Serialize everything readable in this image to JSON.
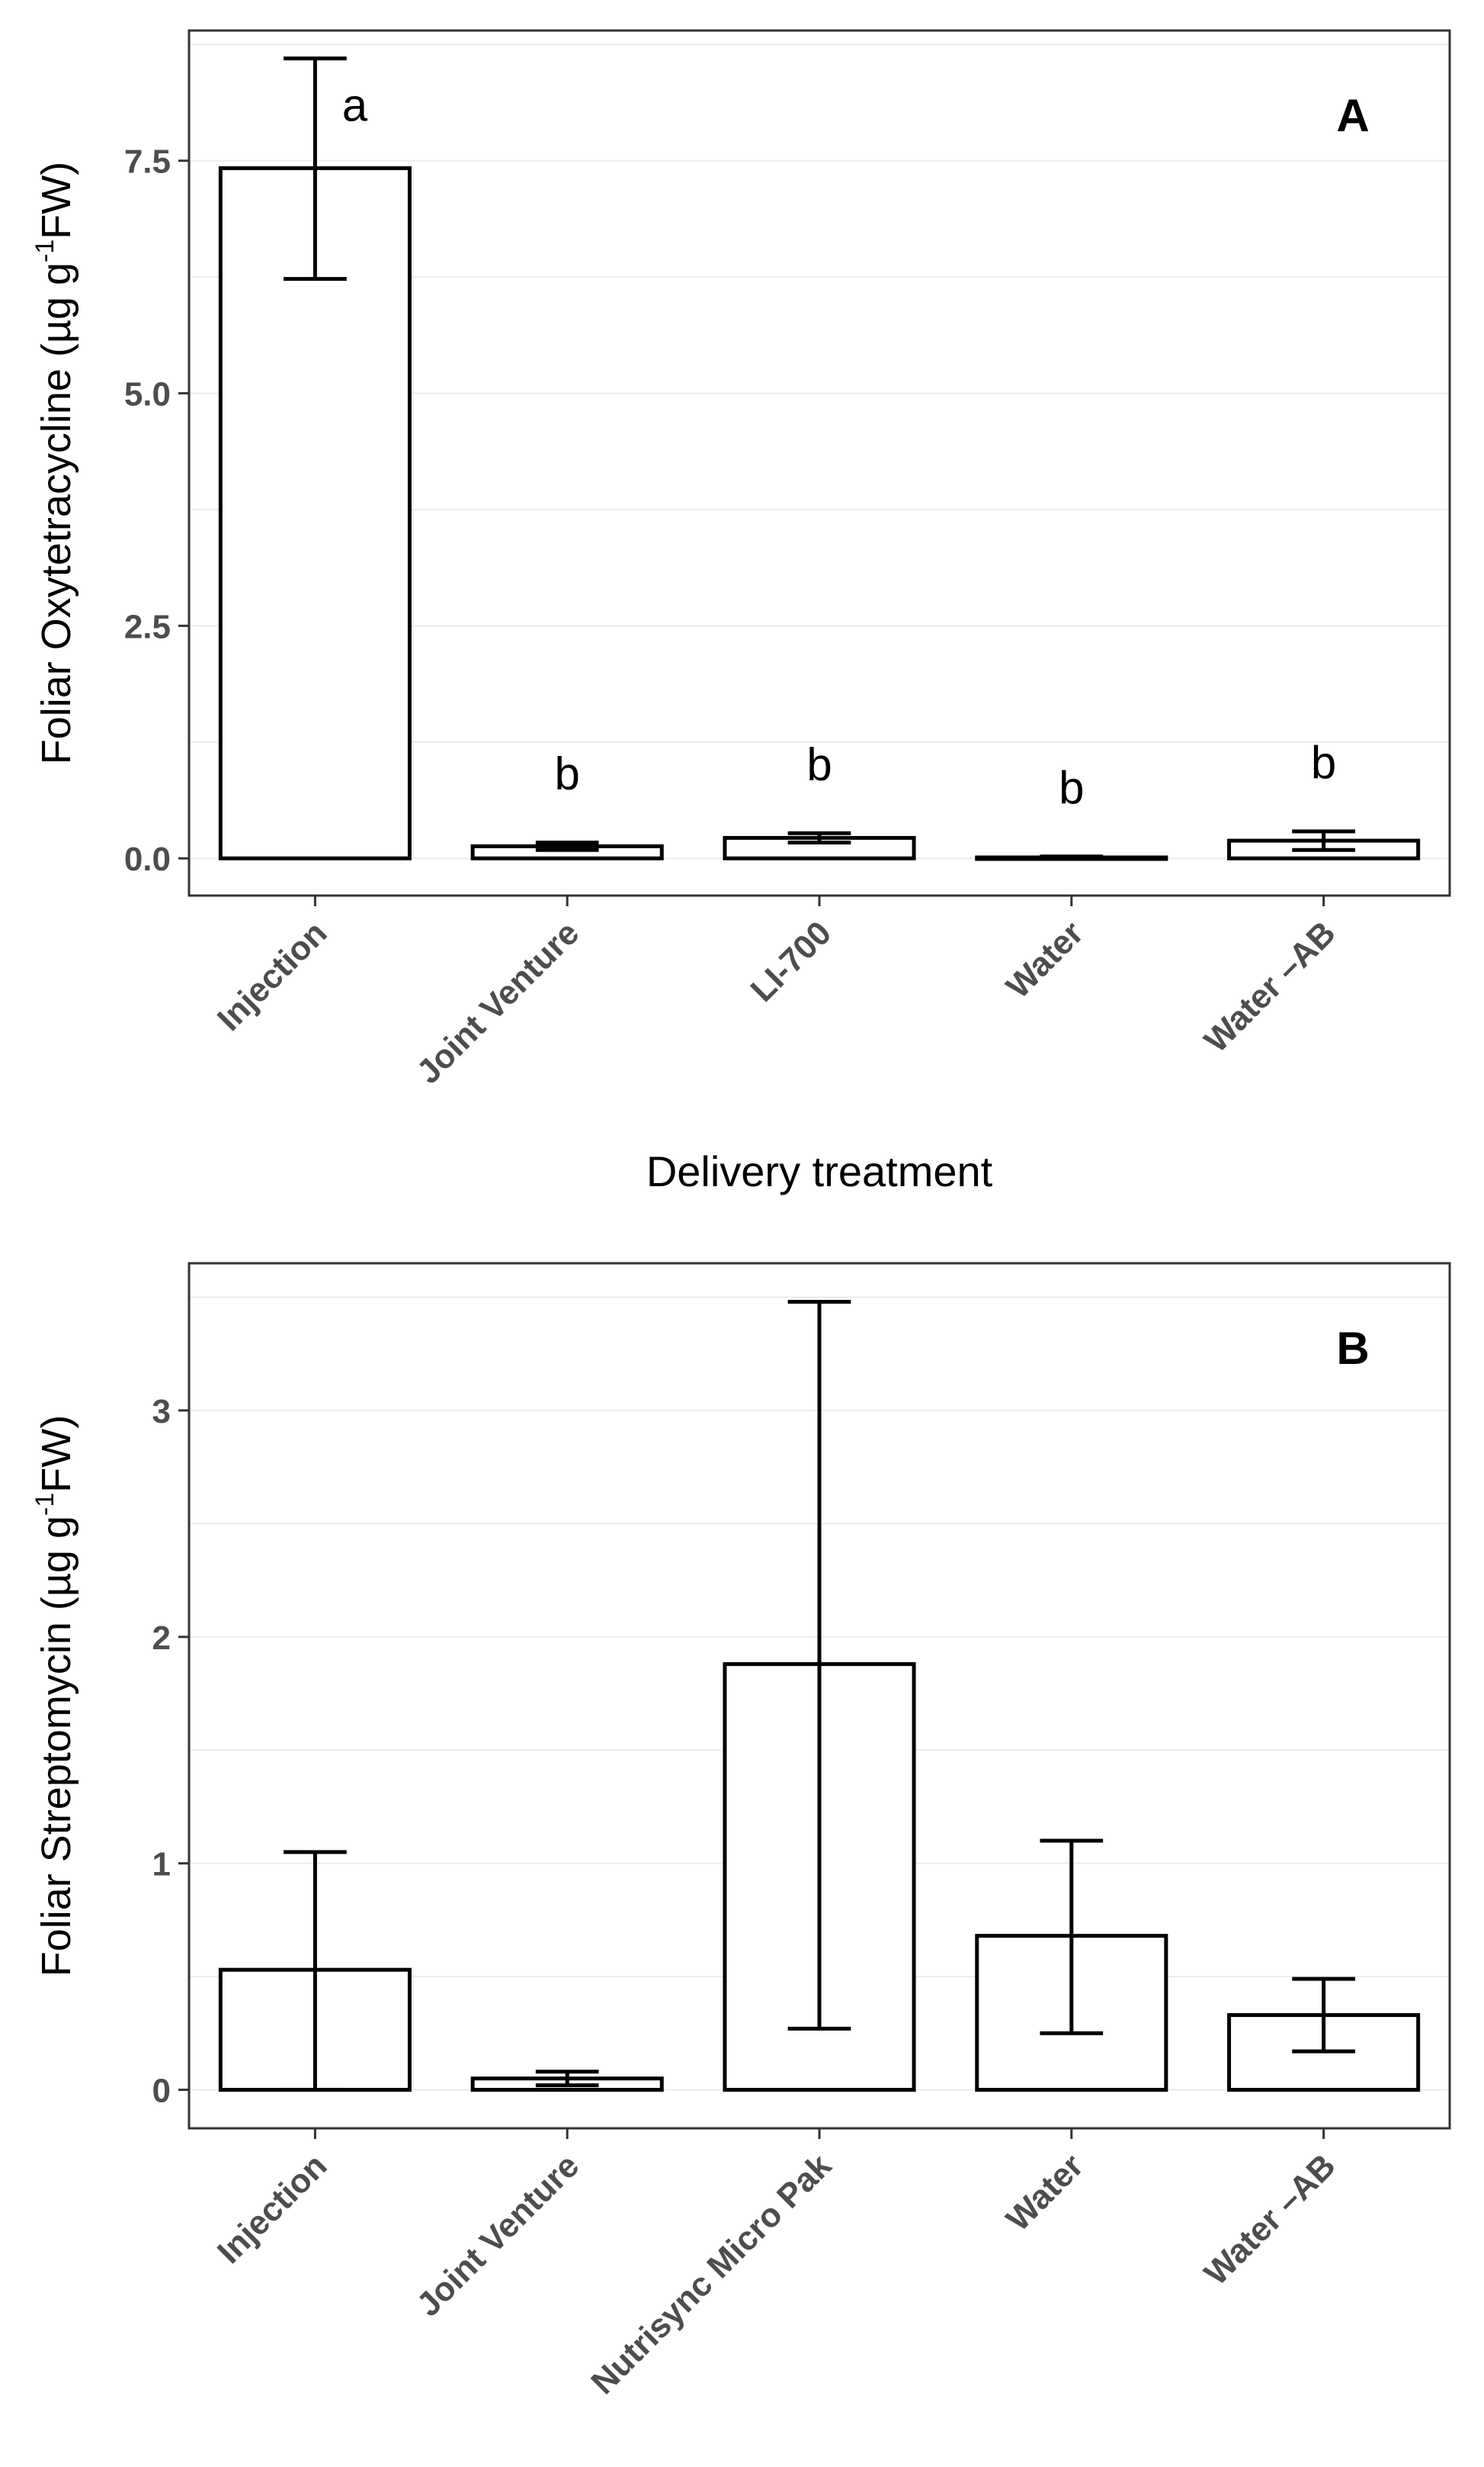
{
  "chart_data": [
    {
      "type": "bar",
      "panel_label": "A",
      "xlabel": "Delivery treatment",
      "ylabel": {
        "text": "Foliar Oxytetracycline (µg g",
        "superscript": "-1",
        "suffix": "FW)"
      },
      "categories": [
        "Injection",
        "Joint Venture",
        "LI-700",
        "Water",
        "Water –AB"
      ],
      "values": [
        7.42,
        0.13,
        0.22,
        0.01,
        0.19
      ],
      "error_low": [
        6.23,
        0.09,
        0.17,
        0.0,
        0.09
      ],
      "error_high": [
        8.6,
        0.17,
        0.27,
        0.02,
        0.29
      ],
      "significance_letters": [
        "a",
        "b",
        "b",
        "b",
        "b"
      ],
      "yticks": [
        0.0,
        2.5,
        5.0,
        7.5
      ],
      "ytick_labels": [
        "0.0",
        "2.5",
        "5.0",
        "7.5"
      ],
      "ylim": [
        -0.4,
        8.9
      ],
      "grid": true,
      "bar_fill": "#ffffff",
      "bar_stroke": "#000000"
    },
    {
      "type": "bar",
      "panel_label": "B",
      "xlabel": "",
      "ylabel": {
        "text": "Foliar Streptomycin (µg g",
        "superscript": "-1",
        "suffix": "FW)"
      },
      "categories": [
        "Injection",
        "Joint Venture",
        "Nutrisync Micro Pak",
        "Water",
        "Water –AB"
      ],
      "values": [
        0.53,
        0.05,
        1.88,
        0.68,
        0.33
      ],
      "error_low": [
        0.0,
        0.02,
        0.27,
        0.25,
        0.17
      ],
      "error_high": [
        1.05,
        0.08,
        3.48,
        1.1,
        0.49
      ],
      "significance_letters": [],
      "yticks": [
        0,
        1,
        2,
        3
      ],
      "ytick_labels": [
        "0",
        "1",
        "2",
        "3"
      ],
      "ylim": [
        -0.17,
        3.65
      ],
      "grid": true,
      "bar_fill": "#ffffff",
      "bar_stroke": "#000000"
    }
  ]
}
